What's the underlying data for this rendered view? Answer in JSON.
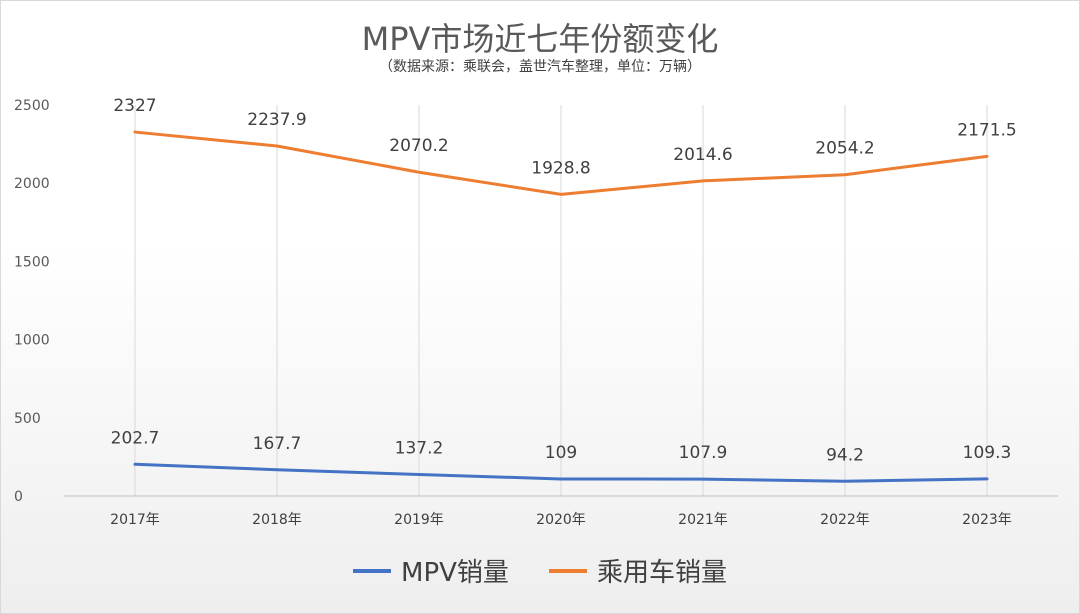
{
  "title": "MPV市场近七年份额变化",
  "subtitle": "（数据来源：乘联会，盖世汽车整理，单位：万辆）",
  "colors": {
    "mpv": "#4472C4",
    "car": "#ED7D31",
    "grid": "#d9d9d9"
  },
  "chart_data": {
    "type": "line",
    "title": "MPV市场近七年份额变化",
    "categories": [
      "2017年",
      "2018年",
      "2019年",
      "2020年",
      "2021年",
      "2022年",
      "2023年"
    ],
    "ylim": [
      0,
      2500
    ],
    "yticks": [
      0,
      500,
      1000,
      1500,
      2000,
      2500
    ],
    "grid": "vertical",
    "legend_position": "bottom",
    "series": [
      {
        "name": "MPV销量",
        "values": [
          202.7,
          167.7,
          137.2,
          109,
          107.9,
          94.2,
          109.3
        ],
        "labels": [
          "202.7",
          "167.7",
          "137.2",
          "109",
          "107.9",
          "94.2",
          "109.3"
        ]
      },
      {
        "name": "乘用车销量",
        "values": [
          2327,
          2237.9,
          2070.2,
          1928.8,
          2014.6,
          2054.2,
          2171.5
        ],
        "labels": [
          "2327",
          "2237.9",
          "2070.2",
          "1928.8",
          "2014.6",
          "2054.2",
          "2171.5"
        ]
      }
    ]
  }
}
